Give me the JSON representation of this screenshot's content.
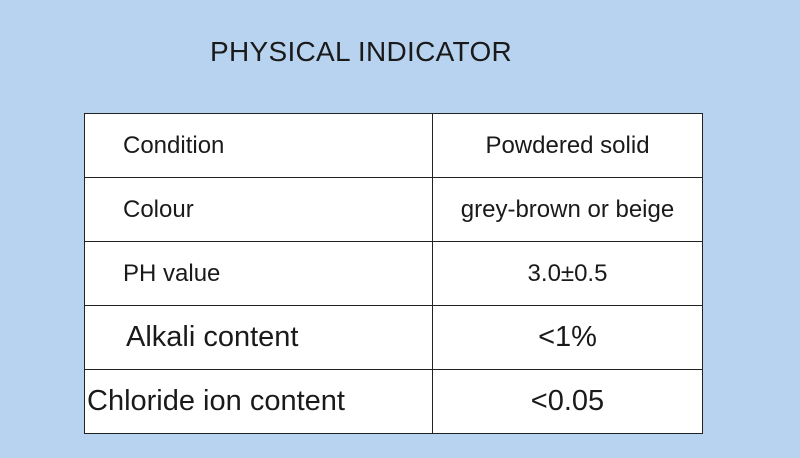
{
  "title": "PHYSICAL INDICATOR",
  "table": {
    "rows": [
      [
        "Condition",
        "Powdered solid"
      ],
      [
        "Colour",
        "grey-brown or beige"
      ],
      [
        "PH value",
        "3.0±0.5"
      ],
      [
        "Alkali content",
        "<1%"
      ],
      [
        "Chloride ion content",
        "<0.05"
      ]
    ]
  }
}
